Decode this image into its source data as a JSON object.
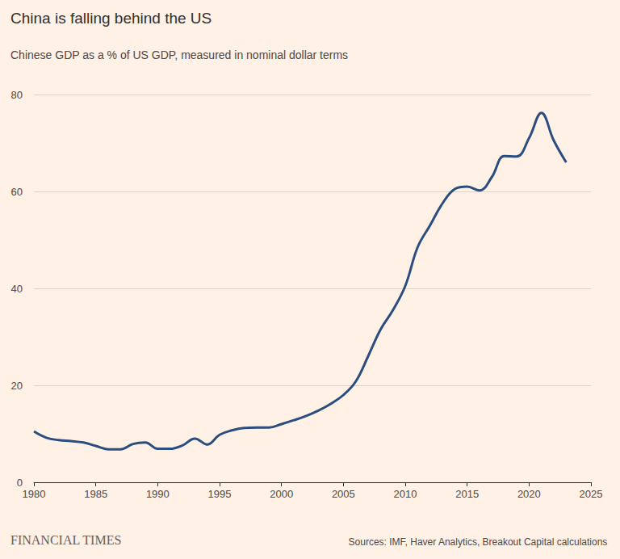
{
  "chart_data": {
    "type": "line",
    "title": "China is falling behind the US",
    "subtitle": "Chinese GDP as a % of US GDP, measured in nominal dollar terms",
    "annotations": [
      "FINANCIAL TIMES",
      "Sources: IMF, Haver Analytics, Breakout Capital calculations"
    ],
    "x": [
      1980,
      1981,
      1982,
      1983,
      1984,
      1985,
      1986,
      1987,
      1988,
      1989,
      1990,
      1991,
      1992,
      1993,
      1994,
      1995,
      1996,
      1997,
      1998,
      1999,
      2000,
      2001,
      2002,
      2003,
      2004,
      2005,
      2006,
      2007,
      2008,
      2009,
      2010,
      2011,
      2012,
      2013,
      2014,
      2015,
      2016,
      2017,
      2018,
      2019,
      2020,
      2021,
      2022,
      2023
    ],
    "values": [
      10.5,
      9.2,
      8.7,
      8.5,
      8.2,
      7.5,
      6.8,
      6.8,
      7.9,
      8.2,
      6.9,
      6.9,
      7.6,
      9.0,
      7.8,
      9.8,
      10.7,
      11.2,
      11.3,
      11.3,
      12.0,
      12.8,
      13.7,
      14.8,
      16.2,
      18.0,
      20.8,
      26.0,
      31.5,
      35.5,
      40.5,
      48.5,
      53.0,
      57.5,
      60.5,
      61.0,
      60.2,
      63.0,
      67.3,
      67.2,
      71.0,
      76.2,
      70.5,
      66.0
    ],
    "color": "#2b4d80",
    "xlim": [
      1980,
      2025
    ],
    "xticks": [
      1980,
      1985,
      1990,
      1995,
      2000,
      2005,
      2010,
      2015,
      2020,
      2025
    ],
    "ylim": [
      0,
      80
    ],
    "yticks": [
      0,
      20,
      40,
      60,
      80
    ],
    "grid": true
  }
}
